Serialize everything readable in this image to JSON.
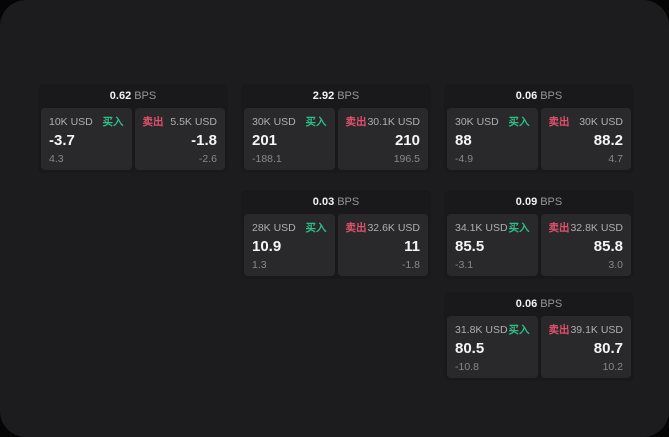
{
  "labels": {
    "bps_suffix": "BPS",
    "buy": "买入",
    "sell": "卖出"
  },
  "colors": {
    "buy": "#2ebd85",
    "sell": "#e1516b",
    "window_bg": "#1c1c1e",
    "card_bg": "#19191b",
    "panel_bg": "#29292c"
  },
  "cards": [
    {
      "row": 1,
      "col": 1,
      "bps": "0.62",
      "buy": {
        "amount": "10K USD",
        "price": "-3.7",
        "delta": "4.3"
      },
      "sell": {
        "amount": "5.5K USD",
        "price": "-1.8",
        "delta": "-2.6"
      }
    },
    {
      "row": 1,
      "col": 2,
      "bps": "2.92",
      "buy": {
        "amount": "30K USD",
        "price": "201",
        "delta": "-188.1"
      },
      "sell": {
        "amount": "30.1K USD",
        "price": "210",
        "delta": "196.5"
      }
    },
    {
      "row": 1,
      "col": 3,
      "bps": "0.06",
      "buy": {
        "amount": "30K USD",
        "price": "88",
        "delta": "-4.9"
      },
      "sell": {
        "amount": "30K USD",
        "price": "88.2",
        "delta": "4.7"
      }
    },
    {
      "row": 2,
      "col": 2,
      "bps": "0.03",
      "buy": {
        "amount": "28K USD",
        "price": "10.9",
        "delta": "1.3"
      },
      "sell": {
        "amount": "32.6K USD",
        "price": "11",
        "delta": "-1.8"
      }
    },
    {
      "row": 2,
      "col": 3,
      "bps": "0.09",
      "buy": {
        "amount": "34.1K USD",
        "price": "85.5",
        "delta": "-3.1"
      },
      "sell": {
        "amount": "32.8K USD",
        "price": "85.8",
        "delta": "3.0"
      }
    },
    {
      "row": 3,
      "col": 3,
      "bps": "0.06",
      "buy": {
        "amount": "31.8K USD",
        "price": "80.5",
        "delta": "-10.8"
      },
      "sell": {
        "amount": "39.1K USD",
        "price": "80.7",
        "delta": "10.2"
      }
    }
  ]
}
